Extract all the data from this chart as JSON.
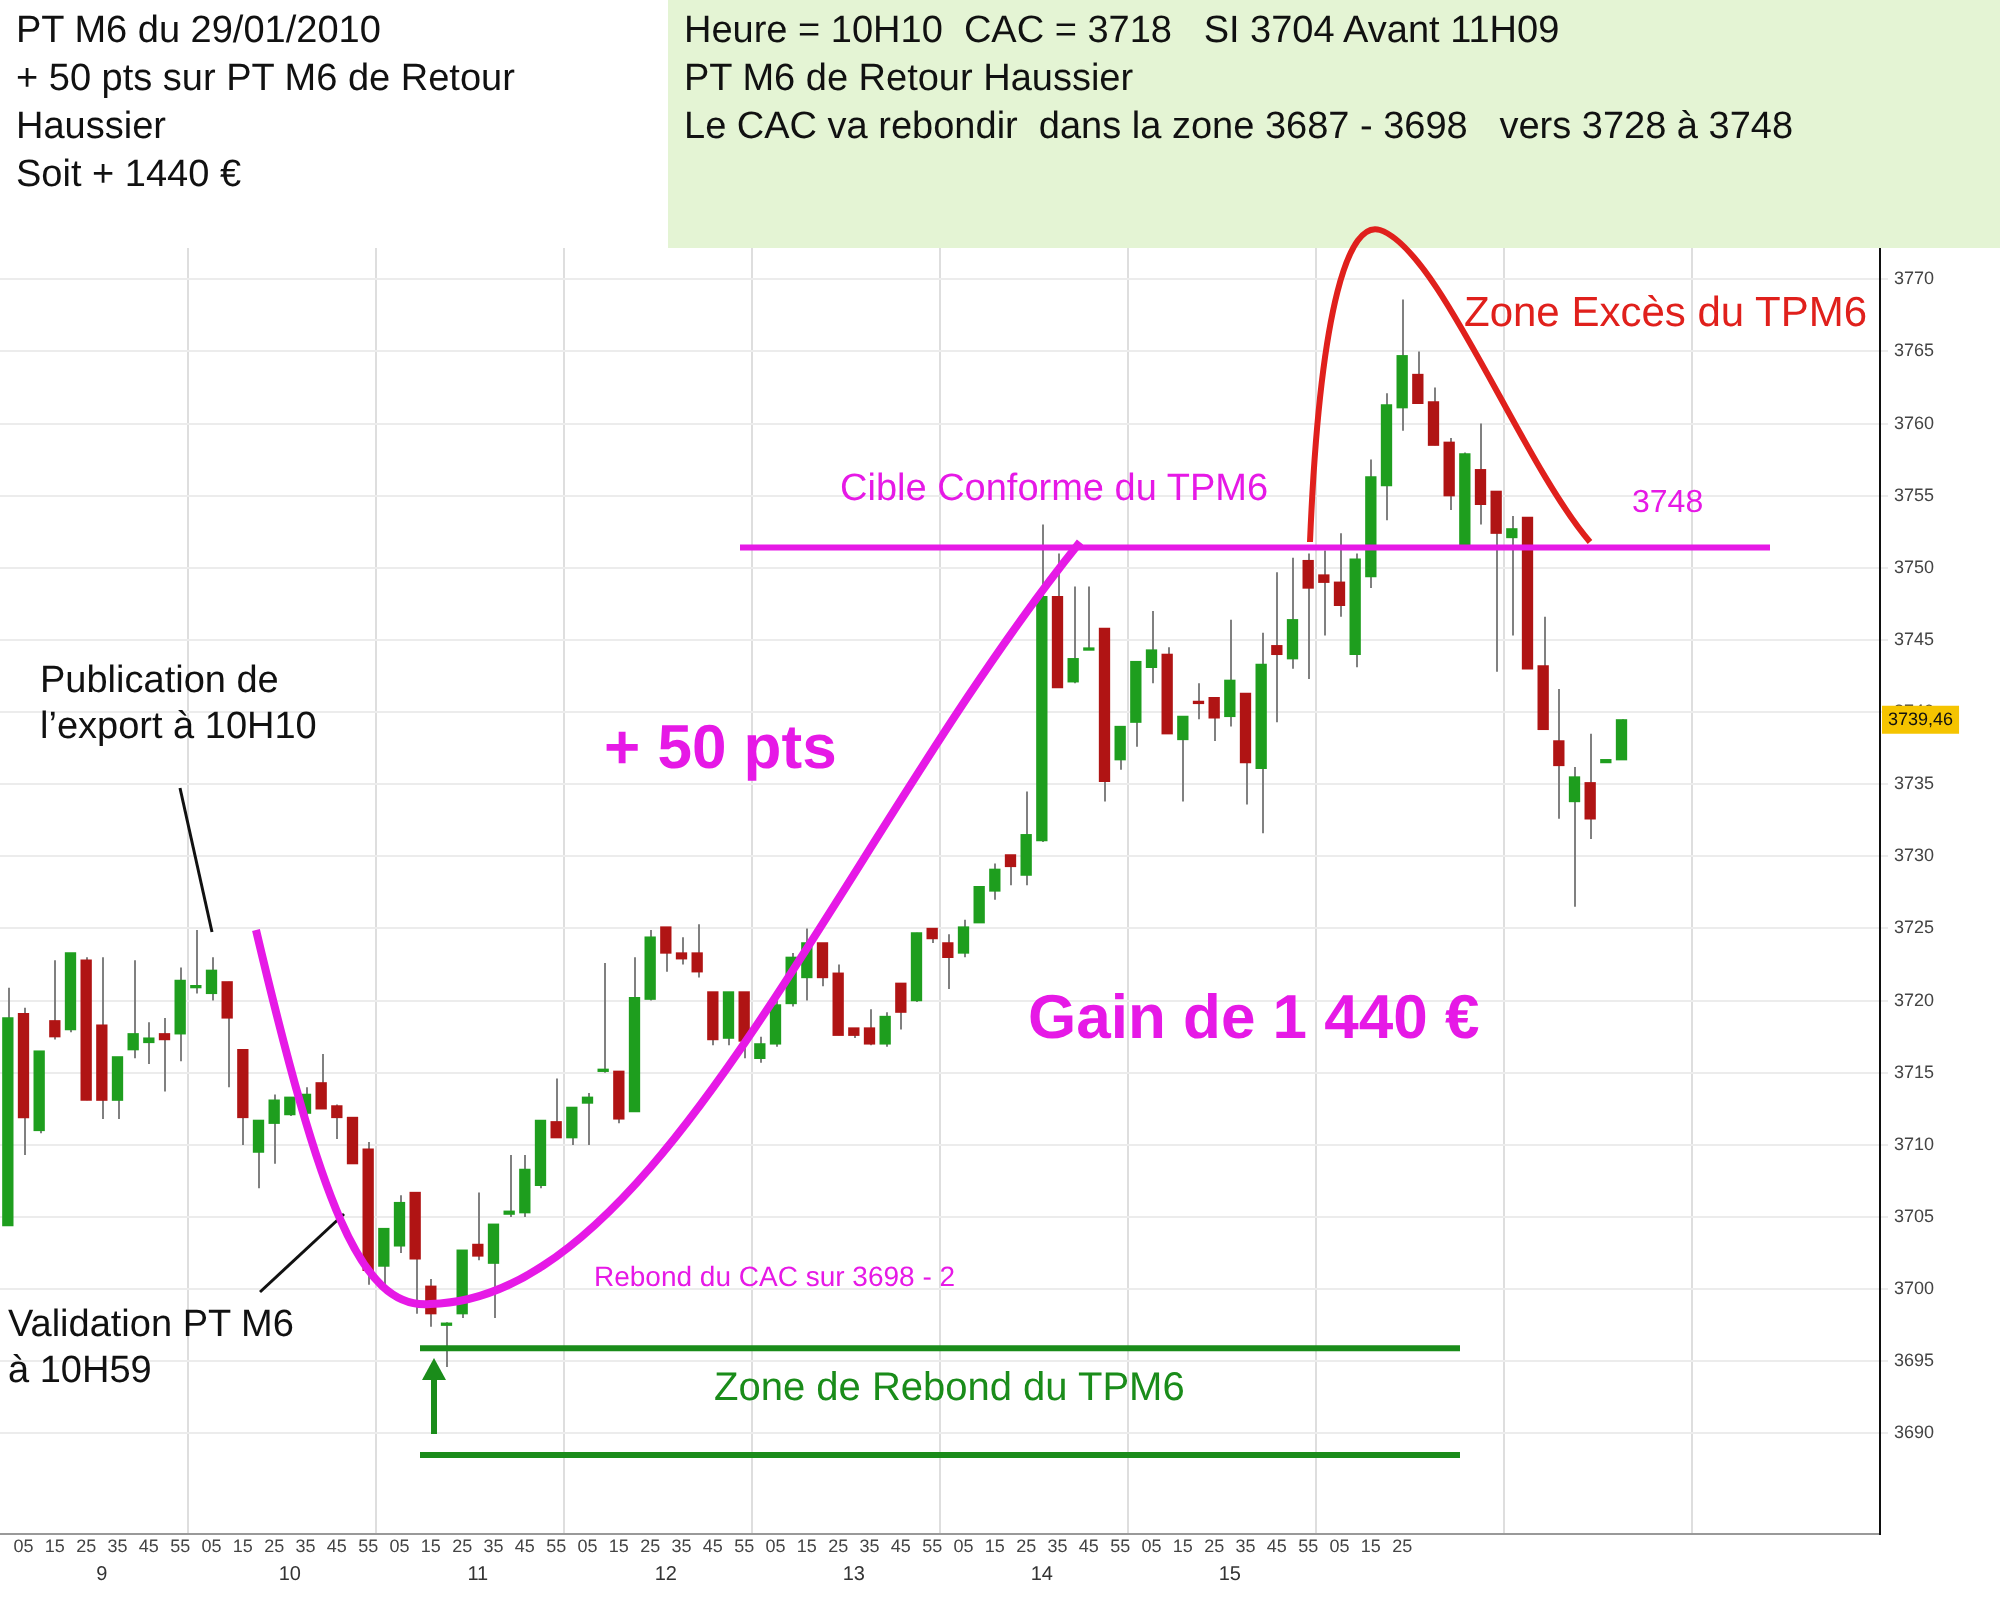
{
  "chart_data": {
    "type": "candlestick",
    "title": "PT M6 du 29/01/2010\n+ 50 pts sur PT M6 de Retour Haussier\nSoit + 1440 €",
    "subtitle": "Heure = 10H10  CAC = 3718   SI 3704 Avant 11H09\nPT M6 de Retour Haussier\nLe CAC va rebondir  dans la zone 3687 - 3698   vers 3728 à 3748",
    "annotations": [
      "Publication de\nl’export à 10H10",
      "Validation PT M6\nà 10H59",
      "+ 50 pts",
      "Gain de 1 440 €",
      "Rebond du CAC sur 3698 - 2",
      "Zone de Rebond du TPM6",
      "Cible Conforme du TPM6",
      "3748",
      "Zone Excès du TPM6",
      "3739,46",
      "9",
      "10",
      "11",
      "12",
      "13",
      "14",
      "15"
    ],
    "categories": [
      null,
      "05",
      null,
      "15",
      null,
      "25",
      null,
      "35",
      null,
      "45",
      null,
      "55",
      null,
      "05",
      null,
      "15",
      null,
      "25",
      null,
      "35",
      null,
      "45",
      null,
      "55",
      null,
      "05",
      null,
      "15",
      null,
      "25",
      null,
      "35",
      null,
      "45",
      null,
      "55",
      null,
      "05",
      null,
      "15",
      null,
      "25",
      null,
      "35",
      null,
      "45",
      null,
      "55",
      null,
      "05",
      null,
      "15",
      null,
      "25",
      null,
      "35",
      null,
      "45",
      null,
      "55",
      null,
      "05",
      null,
      "15",
      null,
      "25",
      null,
      "35",
      null,
      "45",
      null,
      "55",
      null,
      "05",
      null,
      "15",
      null,
      "25",
      null,
      "35",
      null,
      "45",
      null,
      "55",
      null,
      "05",
      null,
      "15",
      null,
      "25",
      null,
      null,
      null,
      null,
      null,
      null,
      null,
      null,
      null,
      null,
      null,
      null,
      null,
      null,
      null,
      null,
      null,
      null,
      null,
      null,
      null,
      null,
      null,
      null,
      null,
      null,
      null,
      null,
      null,
      null
    ],
    "ohlc": [
      [
        3704.4,
        3720.9,
        3704.4,
        3718.8
      ],
      [
        3719.1,
        3719.5,
        3709.3,
        3711.9
      ],
      [
        3711.0,
        3716.5,
        3710.8,
        3716.5
      ],
      [
        3718.6,
        3722.8,
        3717.3,
        3717.5
      ],
      [
        3718.0,
        3723.3,
        3717.8,
        3723.3
      ],
      [
        3722.8,
        3723.0,
        3713.1,
        3713.1
      ],
      [
        3718.3,
        3723.0,
        3711.8,
        3713.1
      ],
      [
        3713.1,
        3716.1,
        3711.8,
        3716.1
      ],
      [
        3716.6,
        3722.8,
        3716.0,
        3717.7
      ],
      [
        3717.1,
        3718.5,
        3715.6,
        3717.4
      ],
      [
        3717.7,
        3718.8,
        3713.7,
        3717.3
      ],
      [
        3717.7,
        3722.3,
        3715.8,
        3721.4
      ],
      [
        3720.9,
        3724.9,
        3720.5,
        3721.0
      ],
      [
        3720.5,
        3723.0,
        3720.0,
        3722.1
      ],
      [
        3721.3,
        3721.3,
        3714.0,
        3718.8
      ],
      [
        3716.6,
        3716.6,
        3710.0,
        3711.9
      ],
      [
        3709.5,
        3711.7,
        3707.0,
        3711.7
      ],
      [
        3711.5,
        3713.5,
        3708.7,
        3713.1
      ],
      [
        3712.1,
        3713.3,
        3712.0,
        3713.3
      ],
      [
        3712.2,
        3714.0,
        3712.0,
        3713.5
      ],
      [
        3714.3,
        3716.3,
        3712.5,
        3712.5
      ],
      [
        3712.7,
        3712.8,
        3710.4,
        3711.9
      ],
      [
        3711.9,
        3711.9,
        3708.7,
        3708.7
      ],
      [
        3709.7,
        3710.2,
        3700.3,
        3701.3
      ],
      [
        3701.6,
        3704.2,
        3700.0,
        3704.2
      ],
      [
        3703.0,
        3706.5,
        3702.5,
        3706.0
      ],
      [
        3706.7,
        3706.7,
        3698.3,
        3702.1
      ],
      [
        3700.2,
        3700.7,
        3697.4,
        3698.3
      ],
      [
        3697.5,
        3697.7,
        3694.6,
        3697.6
      ],
      [
        3698.3,
        3702.7,
        3698.0,
        3702.7
      ],
      [
        3703.1,
        3706.7,
        3702.0,
        3702.3
      ],
      [
        3701.8,
        3704.5,
        3698.0,
        3704.5
      ],
      [
        3705.2,
        3709.3,
        3705.0,
        3705.4
      ],
      [
        3705.3,
        3709.3,
        3705.0,
        3708.3
      ],
      [
        3707.2,
        3711.7,
        3707.0,
        3711.7
      ],
      [
        3711.6,
        3714.6,
        3710.5,
        3710.5
      ],
      [
        3710.5,
        3712.6,
        3710.0,
        3712.6
      ],
      [
        3712.9,
        3713.6,
        3710.0,
        3713.3
      ],
      [
        3715.1,
        3722.6,
        3715.0,
        3715.2
      ],
      [
        3715.1,
        3715.1,
        3711.5,
        3711.8
      ],
      [
        3712.3,
        3723.0,
        3712.3,
        3720.2
      ],
      [
        3720.1,
        3724.9,
        3720.0,
        3724.4
      ],
      [
        3725.1,
        3725.1,
        3722.0,
        3723.3
      ],
      [
        3723.3,
        3724.4,
        3722.5,
        3722.9
      ],
      [
        3723.3,
        3725.3,
        3721.6,
        3722.0
      ],
      [
        3720.6,
        3720.6,
        3716.9,
        3717.3
      ],
      [
        3717.4,
        3720.6,
        3716.9,
        3720.6
      ],
      [
        3720.6,
        3720.6,
        3716.0,
        3717.2
      ],
      [
        3716.0,
        3717.5,
        3715.7,
        3717.0
      ],
      [
        3717.0,
        3720.0,
        3716.8,
        3719.7
      ],
      [
        3719.8,
        3723.3,
        3719.6,
        3723.0
      ],
      [
        3721.6,
        3725.0,
        3720.0,
        3724.0
      ],
      [
        3724.0,
        3724.0,
        3721.0,
        3721.6
      ],
      [
        3721.9,
        3722.5,
        3717.6,
        3717.6
      ],
      [
        3718.1,
        3718.1,
        3717.4,
        3717.6
      ],
      [
        3718.1,
        3719.4,
        3716.9,
        3717.0
      ],
      [
        3717.0,
        3719.2,
        3716.8,
        3718.9
      ],
      [
        3721.2,
        3721.2,
        3718.0,
        3719.2
      ],
      [
        3720.0,
        3724.7,
        3719.9,
        3724.7
      ],
      [
        3725.0,
        3725.0,
        3724.0,
        3724.3
      ],
      [
        3724.0,
        3724.6,
        3720.8,
        3723.0
      ],
      [
        3723.3,
        3725.6,
        3723.0,
        3725.1
      ],
      [
        3725.4,
        3727.9,
        3725.4,
        3727.9
      ],
      [
        3727.6,
        3729.5,
        3727.0,
        3729.1
      ],
      [
        3730.1,
        3730.1,
        3728.0,
        3729.3
      ],
      [
        3728.7,
        3734.5,
        3728.0,
        3731.5
      ],
      [
        3731.1,
        3753.0,
        3731.0,
        3748.0
      ],
      [
        3748.0,
        3751.0,
        3741.7,
        3741.7
      ],
      [
        3742.1,
        3748.7,
        3742.0,
        3743.7
      ],
      [
        3744.3,
        3748.7,
        3744.3,
        3744.4
      ],
      [
        3745.8,
        3745.8,
        3733.8,
        3735.2
      ],
      [
        3736.7,
        3739.0,
        3736.0,
        3739.0
      ],
      [
        3739.3,
        3743.5,
        3737.6,
        3743.5
      ],
      [
        3743.1,
        3747.0,
        3742.0,
        3744.3
      ],
      [
        3744.0,
        3744.5,
        3738.5,
        3738.5
      ],
      [
        3738.1,
        3739.7,
        3733.8,
        3739.7
      ],
      [
        3740.7,
        3742.0,
        3739.5,
        3740.6
      ],
      [
        3741.0,
        3741.0,
        3738.0,
        3739.6
      ],
      [
        3739.7,
        3746.4,
        3739.0,
        3742.2
      ],
      [
        3741.3,
        3741.3,
        3733.6,
        3736.5
      ],
      [
        3736.1,
        3745.5,
        3731.6,
        3743.3
      ],
      [
        3744.6,
        3749.7,
        3739.3,
        3744.0
      ],
      [
        3743.7,
        3750.7,
        3743.0,
        3746.4
      ],
      [
        3750.5,
        3751.0,
        3742.3,
        3748.6
      ],
      [
        3749.5,
        3751.2,
        3745.3,
        3749.0
      ],
      [
        3749.0,
        3752.4,
        3746.6,
        3747.4
      ],
      [
        3744.0,
        3751.0,
        3743.1,
        3750.6
      ],
      [
        3749.4,
        3757.5,
        3748.6,
        3756.3
      ],
      [
        3755.7,
        3762.1,
        3753.3,
        3761.3
      ],
      [
        3761.1,
        3768.6,
        3759.5,
        3764.7
      ],
      [
        3763.4,
        3765.0,
        3761.4,
        3761.4
      ],
      [
        3761.5,
        3762.5,
        3758.5,
        3758.5
      ],
      [
        3758.7,
        3759.0,
        3754.0,
        3755.0
      ],
      [
        3751.3,
        3758.0,
        3751.3,
        3757.9
      ],
      [
        3756.8,
        3760.0,
        3753.0,
        3754.4
      ],
      [
        3755.3,
        3755.3,
        3742.8,
        3752.4
      ],
      [
        3752.1,
        3753.6,
        3745.3,
        3752.7
      ],
      [
        3753.5,
        3753.5,
        3743.0,
        3743.0
      ],
      [
        3743.2,
        3746.6,
        3738.8,
        3738.8
      ],
      [
        3738.0,
        3741.6,
        3732.6,
        3736.3
      ],
      [
        3733.8,
        3736.2,
        3726.5,
        3735.5
      ],
      [
        3735.1,
        3738.5,
        3731.2,
        3732.6
      ],
      [
        3736.5,
        3736.7,
        3736.5,
        3736.7
      ],
      [
        3736.7,
        3739.5,
        3736.7,
        3739.46
      ],
      null,
      null,
      null,
      null,
      null,
      null,
      null,
      null,
      null,
      null,
      null,
      null,
      null,
      null,
      null,
      null
    ],
    "colors": [
      "#1e9e1e",
      "#b01414",
      "#1e9e1e",
      "#b01414",
      "#1e9e1e",
      "#b01414",
      "#b01414",
      "#1e9e1e",
      "#1e9e1e",
      "#1e9e1e",
      "#b01414",
      "#1e9e1e",
      "#1e9e1e",
      "#1e9e1e",
      "#b01414",
      "#b01414",
      "#1e9e1e",
      "#1e9e1e",
      "#1e9e1e",
      "#1e9e1e",
      "#b01414",
      "#b01414",
      "#b01414",
      "#b01414",
      "#1e9e1e",
      "#1e9e1e",
      "#b01414",
      "#b01414",
      "#1e9e1e",
      "#1e9e1e",
      "#b01414",
      "#1e9e1e",
      "#1e9e1e",
      "#1e9e1e",
      "#1e9e1e",
      "#b01414",
      "#1e9e1e",
      "#1e9e1e",
      "#1e9e1e",
      "#b01414",
      "#1e9e1e",
      "#1e9e1e",
      "#b01414",
      "#b01414",
      "#b01414",
      "#b01414",
      "#1e9e1e",
      "#b01414",
      "#1e9e1e",
      "#1e9e1e",
      "#1e9e1e",
      "#1e9e1e",
      "#b01414",
      "#b01414",
      "#b01414",
      "#b01414",
      "#1e9e1e",
      "#b01414",
      "#1e9e1e",
      "#b01414",
      "#b01414",
      "#1e9e1e",
      "#1e9e1e",
      "#1e9e1e",
      "#b01414",
      "#1e9e1e",
      "#1e9e1e",
      "#b01414",
      "#1e9e1e",
      "#1e9e1e",
      "#b01414",
      "#1e9e1e",
      "#1e9e1e",
      "#1e9e1e",
      "#b01414",
      "#1e9e1e",
      "#b01414",
      "#b01414",
      "#1e9e1e",
      "#b01414",
      "#1e9e1e",
      "#b01414",
      "#1e9e1e",
      "#b01414",
      "#b01414",
      "#b01414",
      "#1e9e1e",
      "#1e9e1e",
      "#1e9e1e",
      "#1e9e1e",
      "#b01414",
      "#b01414",
      "#b01414",
      "#1e9e1e",
      "#b01414",
      "#b01414",
      "#1e9e1e",
      "#b01414",
      "#b01414",
      "#b01414",
      "#1e9e1e",
      "#b01414",
      "#1e9e1e",
      "#1e9e1e",
      null,
      null,
      null,
      null,
      null,
      null,
      null,
      null,
      null,
      null,
      null,
      null,
      null,
      null,
      null,
      null
    ],
    "ref_lines": [
      {
        "axis": "y",
        "value": 3751.4,
        "color": "#e619e6"
      },
      {
        "axis": "y",
        "value": 3695.9,
        "color": "#1a8c1a"
      },
      {
        "axis": "y",
        "value": 3688.5,
        "color": "#1a8c1a"
      }
    ],
    "ylim": [
      3683,
      3773
    ],
    "yticks": [
      3690,
      3695,
      3700,
      3705,
      3710,
      3715,
      3720,
      3725,
      3730,
      3735,
      3740,
      3745,
      3750,
      3755,
      3760,
      3765,
      3770
    ],
    "grid": true
  }
}
